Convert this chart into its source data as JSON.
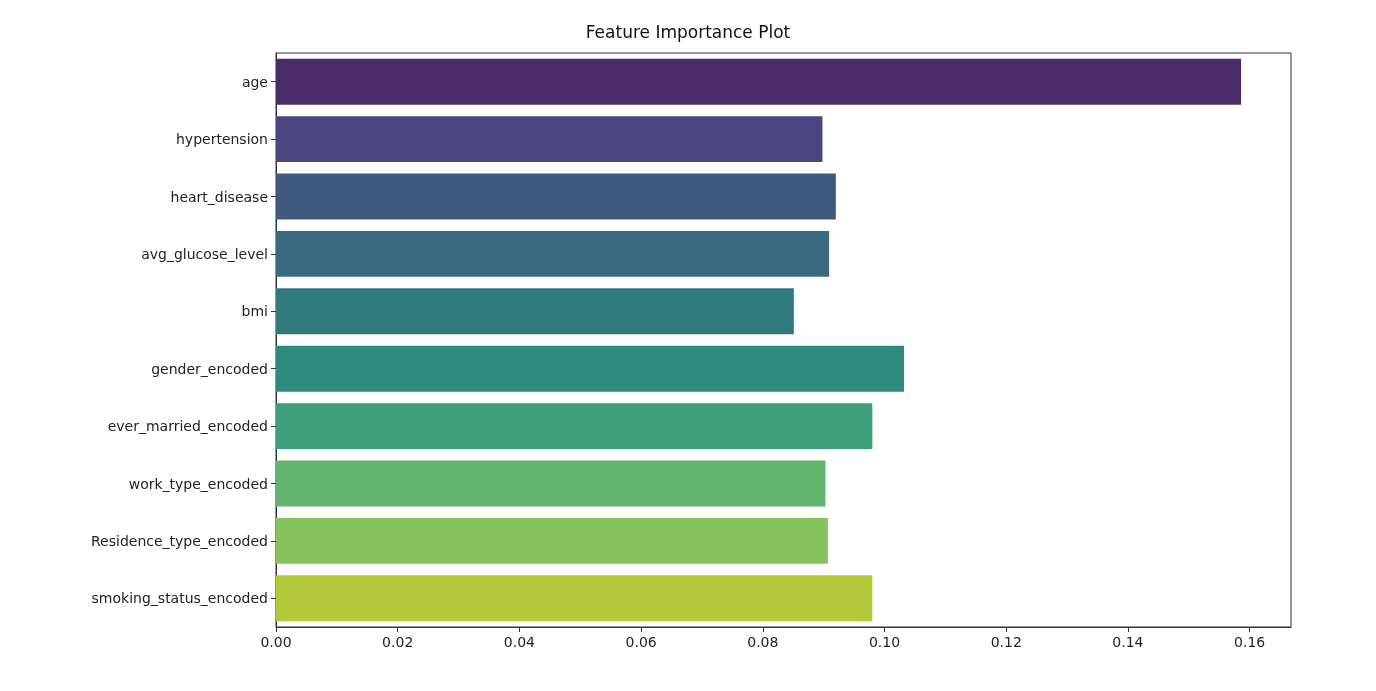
{
  "chart_data": {
    "type": "bar",
    "orientation": "horizontal",
    "title": "Feature Importance Plot",
    "categories": [
      "age",
      "hypertension",
      "heart_disease",
      "avg_glucose_level",
      "bmi",
      "gender_encoded",
      "ever_married_encoded",
      "work_type_encoded",
      "Residence_type_encoded",
      "smoking_status_encoded"
    ],
    "values": [
      0.1586,
      0.0898,
      0.092,
      0.0909,
      0.0851,
      0.1032,
      0.098,
      0.0903,
      0.0907,
      0.098
    ],
    "colors": [
      "#4a2c68",
      "#4a4780",
      "#42597f",
      "#3a6a7f",
      "#307a7e",
      "#2e8a7d",
      "#3da07a",
      "#62b46f",
      "#89c35e",
      "#b3c93b"
    ],
    "xlim": [
      0,
      0.1668
    ],
    "xticks": [
      {
        "value": 0,
        "label": "0.00"
      },
      0.02,
      0.04,
      0.06,
      0.08,
      {
        "value": 0.1,
        "label": "0.10"
      },
      0.12,
      0.14,
      0.16
    ],
    "grid": false
  }
}
